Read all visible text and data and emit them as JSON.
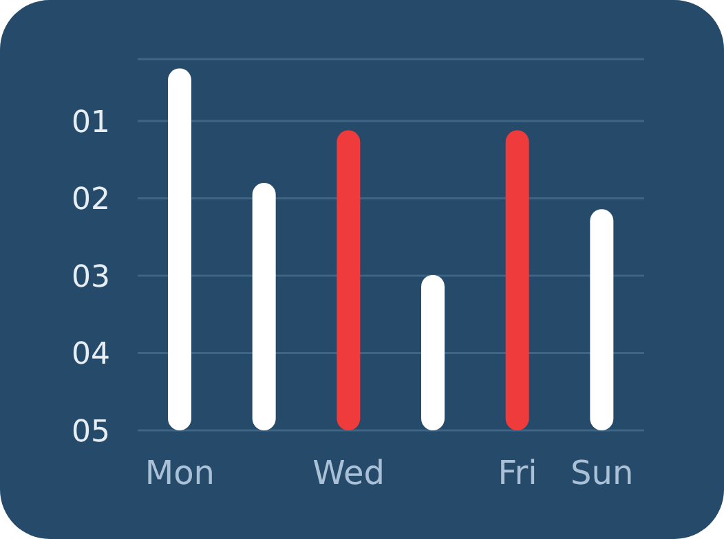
{
  "chart_data": {
    "type": "bar",
    "categories": [
      "Mon",
      null,
      "Wed",
      null,
      "Fri",
      "Sun"
    ],
    "base": [
      5,
      5,
      5,
      5,
      5,
      5
    ],
    "values": [
      -4.68,
      -3.2,
      -3.88,
      -2.01,
      -3.88,
      -2.86
    ],
    "colors": [
      "#ffffff",
      "#ffffff",
      "#ef3b3b",
      "#ffffff",
      "#ef3b3b",
      "#ffffff"
    ],
    "ylim": [
      5,
      0.2
    ],
    "yticks": [
      {
        "value": 1,
        "label": "01"
      },
      {
        "value": 2,
        "label": "02"
      },
      {
        "value": 3,
        "label": "03"
      },
      {
        "value": 4,
        "label": "04"
      },
      {
        "value": 5,
        "label": "05"
      }
    ],
    "grid": "y"
  }
}
